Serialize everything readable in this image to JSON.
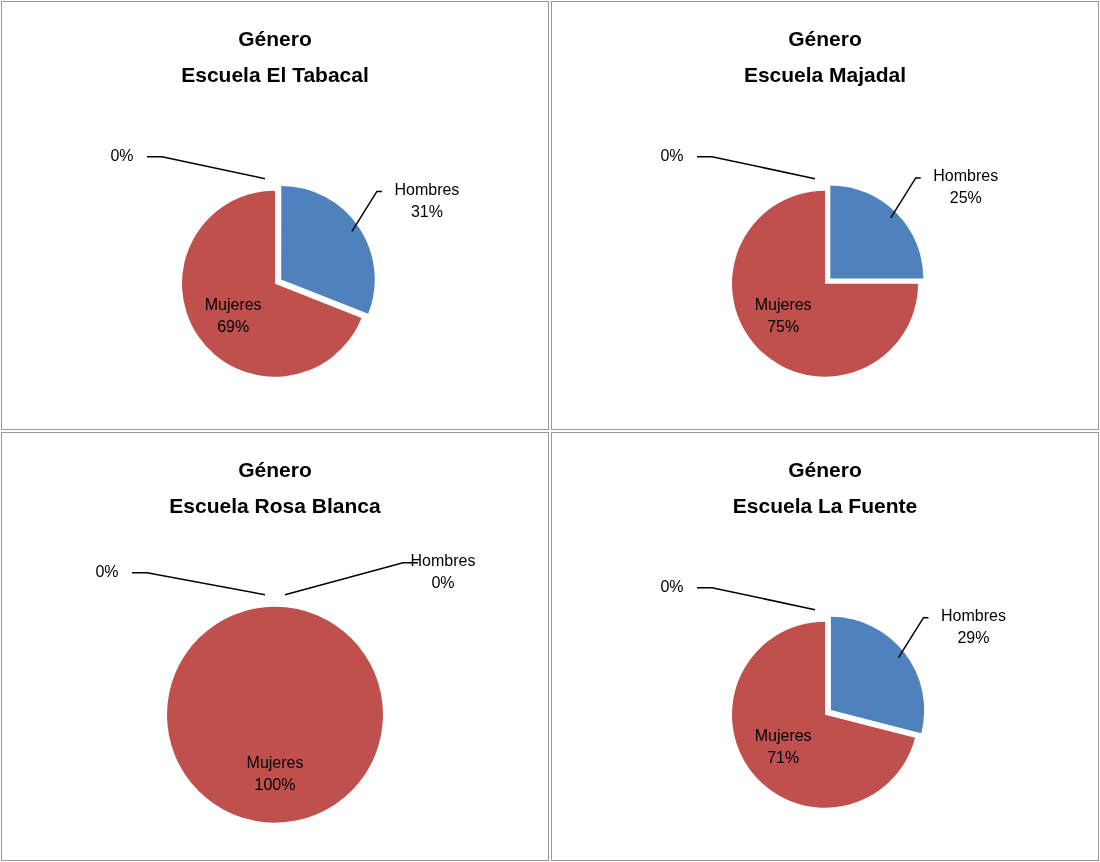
{
  "chart_data": [
    {
      "type": "pie",
      "title": "Género",
      "subtitle": "Escuela El Tabacal",
      "categories": [
        "Hombres",
        "Mujeres",
        null
      ],
      "values": [
        31,
        69,
        0
      ],
      "value_labels": [
        "31%",
        "69%",
        "0%"
      ],
      "colors": [
        "#4f81bd",
        "#c0504d",
        "#9bbb59"
      ],
      "legend": false
    },
    {
      "type": "pie",
      "title": "Género",
      "subtitle": "Escuela Majadal",
      "categories": [
        "Hombres",
        "Mujeres",
        null
      ],
      "values": [
        25,
        75,
        0
      ],
      "value_labels": [
        "25%",
        "75%",
        "0%"
      ],
      "colors": [
        "#4f81bd",
        "#c0504d",
        "#9bbb59"
      ],
      "legend": false
    },
    {
      "type": "pie",
      "title": "Género",
      "subtitle": "Escuela Rosa Blanca",
      "categories": [
        "Hombres",
        "Mujeres",
        null
      ],
      "values": [
        0,
        100,
        0
      ],
      "value_labels": [
        "0%",
        "100%",
        "0%"
      ],
      "colors": [
        "#4f81bd",
        "#c0504d",
        "#9bbb59"
      ],
      "legend": false
    },
    {
      "type": "pie",
      "title": "Género",
      "subtitle": "Escuela La Fuente",
      "categories": [
        "Hombres",
        "Mujeres",
        null
      ],
      "values": [
        29,
        71,
        0
      ],
      "value_labels": [
        "29%",
        "71%",
        "0%"
      ],
      "colors": [
        "#4f81bd",
        "#c0504d",
        "#9bbb59"
      ],
      "legend": false
    }
  ]
}
